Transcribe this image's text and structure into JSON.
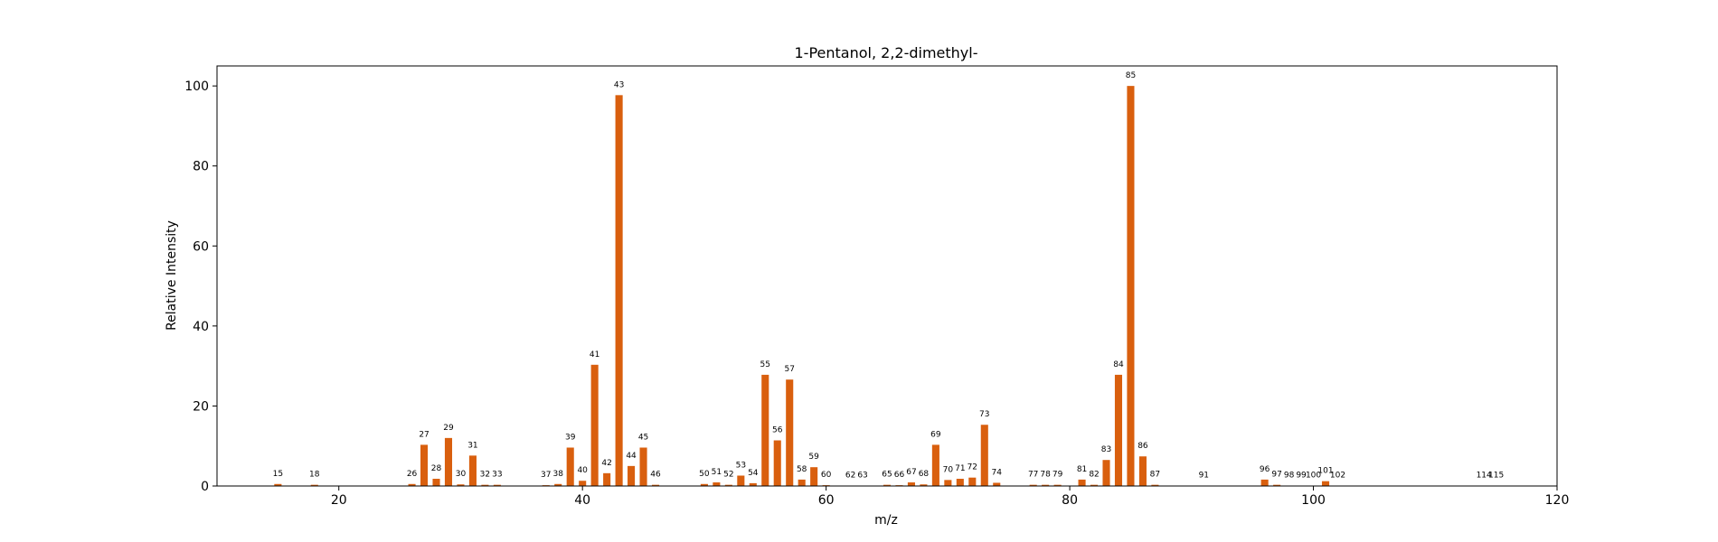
{
  "chart_data": {
    "type": "bar",
    "title": "1-Pentanol, 2,2-dimethyl-",
    "xlabel": "m/z",
    "ylabel": "Relative Intensity",
    "xlim": [
      10,
      120
    ],
    "ylim": [
      0,
      105
    ],
    "xticks": [
      20,
      40,
      60,
      80,
      100,
      120
    ],
    "yticks": [
      0,
      20,
      40,
      60,
      80,
      100
    ],
    "grid": false,
    "bar_color": "#d95f0e",
    "x": [
      15,
      18,
      26,
      27,
      28,
      29,
      30,
      31,
      32,
      33,
      37,
      38,
      39,
      40,
      41,
      42,
      43,
      44,
      45,
      46,
      50,
      51,
      52,
      53,
      54,
      55,
      56,
      57,
      58,
      59,
      60,
      62,
      63,
      65,
      66,
      67,
      68,
      69,
      70,
      71,
      72,
      73,
      74,
      77,
      78,
      79,
      81,
      82,
      83,
      84,
      85,
      86,
      87,
      91,
      96,
      97,
      98,
      99,
      100,
      101,
      102,
      114,
      115
    ],
    "values": [
      0.5,
      0.3,
      0.5,
      10.3,
      1.8,
      12.0,
      0.4,
      7.6,
      0.3,
      0.3,
      0.2,
      0.5,
      9.6,
      1.3,
      30.3,
      3.2,
      97.7,
      5.0,
      9.6,
      0.3,
      0.5,
      0.9,
      0.3,
      2.6,
      0.7,
      27.8,
      11.4,
      26.6,
      1.6,
      4.7,
      0.2,
      0.1,
      0.1,
      0.3,
      0.2,
      0.9,
      0.4,
      10.3,
      1.5,
      1.8,
      2.1,
      15.3,
      0.8,
      0.3,
      0.3,
      0.3,
      1.6,
      0.3,
      6.5,
      27.8,
      100.0,
      7.4,
      0.3,
      0.1,
      1.6,
      0.3,
      0.1,
      0.1,
      0.1,
      1.2,
      0.1,
      0.1,
      0.1
    ],
    "labels": [
      "15",
      "18",
      "26",
      "27",
      "28",
      "29",
      "30",
      "31",
      "32",
      "33",
      "37",
      "38",
      "39",
      "40",
      "41",
      "42",
      "43",
      "44",
      "45",
      "46",
      "50",
      "51",
      "52",
      "53",
      "54",
      "55",
      "56",
      "57",
      "58",
      "59",
      "60",
      "62",
      "63",
      "65",
      "66",
      "67",
      "68",
      "69",
      "70",
      "71",
      "72",
      "73",
      "74",
      "77",
      "78",
      "79",
      "81",
      "82",
      "83",
      "84",
      "85",
      "86",
      "87",
      "91",
      "96",
      "97",
      "98",
      "99",
      "100",
      "101",
      "102",
      "114",
      "115"
    ]
  }
}
